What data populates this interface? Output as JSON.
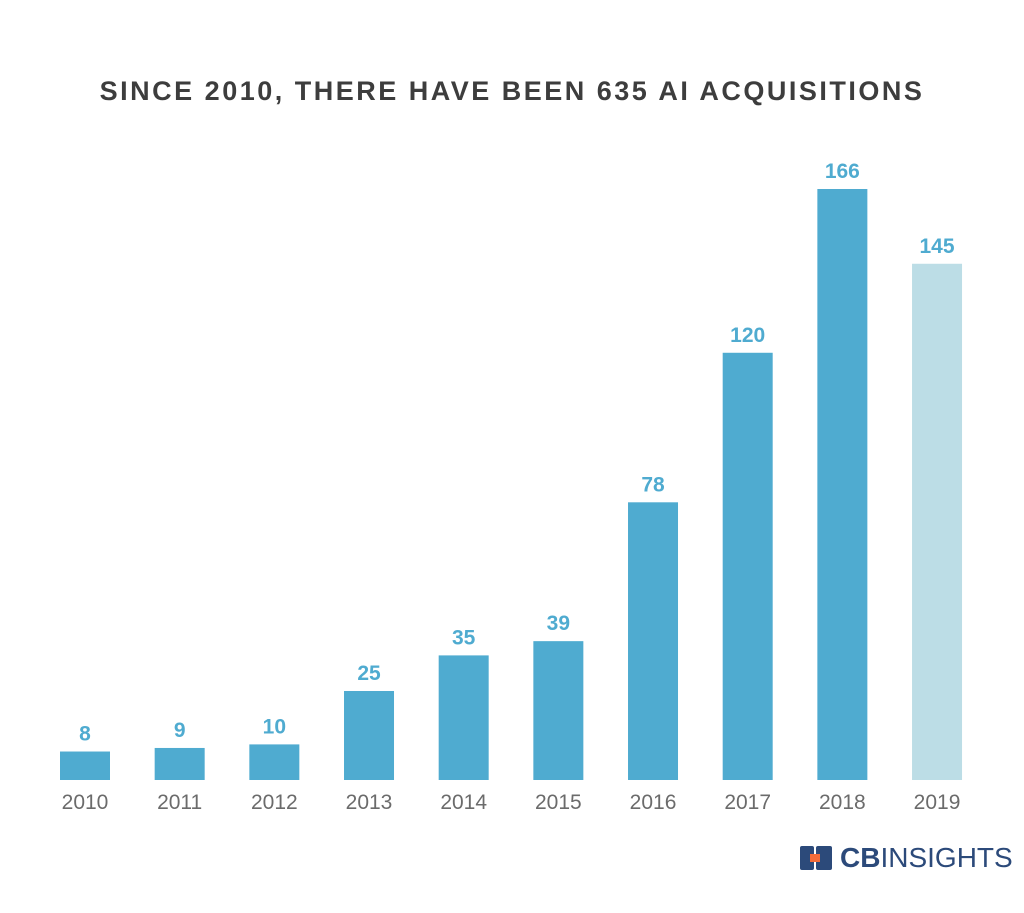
{
  "chart_data": {
    "type": "bar",
    "title": "SINCE 2010, THERE HAVE BEEN 635 AI ACQUISITIONS",
    "categories": [
      "2010",
      "2011",
      "2012",
      "2013",
      "2014",
      "2015",
      "2016",
      "2017",
      "2018",
      "2019"
    ],
    "values": [
      8,
      9,
      10,
      25,
      35,
      39,
      78,
      120,
      166,
      145
    ],
    "value_labels": [
      "8",
      "9",
      "10",
      "25",
      "35",
      "39",
      "78",
      "120",
      "166",
      "145"
    ],
    "xlabel": "",
    "ylabel": "",
    "ylim": [
      0,
      166
    ],
    "grid": false,
    "legend": "none",
    "colors": {
      "bar": "#4fabd0",
      "bar_highlight": "#bcdde6",
      "label": "#4fabd0",
      "tick": "#6b6b6b",
      "title": "#3d3d3d"
    },
    "highlight_index": 9
  },
  "brand": {
    "logo_cb": "CB",
    "logo_insights": "INSIGHTS",
    "logo_icon": "cb-logo-mark-icon",
    "colors": {
      "navy": "#2c4a7a",
      "orange": "#f26b3a"
    }
  }
}
